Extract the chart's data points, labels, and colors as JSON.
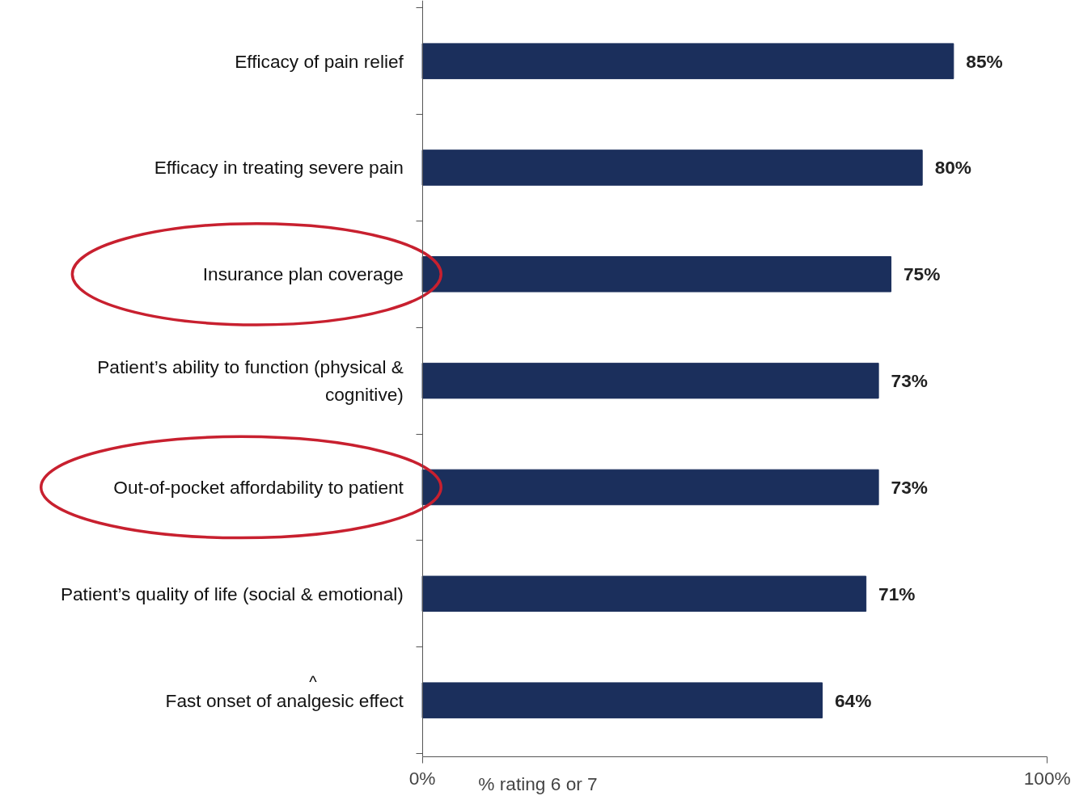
{
  "chart_data": {
    "type": "bar",
    "orientation": "horizontal",
    "xlabel": "% rating 6 or 7",
    "categories": [
      "Efficacy of pain relief",
      "Efficacy in treating severe pain",
      "Insurance plan coverage",
      "Patient’s ability to function (physical & cognitive)",
      "Out-of-pocket affordability to patient",
      "Patient’s quality of life (social & emotional)",
      "Fast onset of analgesic effect"
    ],
    "values": [
      85,
      80,
      75,
      73,
      73,
      71,
      64
    ],
    "value_labels": [
      "85%",
      "80%",
      "75%",
      "73%",
      "73%",
      "71%",
      "64%"
    ],
    "color": "#1b2f5c",
    "xlim": [
      0,
      100
    ],
    "xticks": [
      {
        "value": 0,
        "label": "0%"
      },
      {
        "value": 100,
        "label": "100%"
      }
    ],
    "grid": false,
    "annotations": [
      "^"
    ]
  }
}
